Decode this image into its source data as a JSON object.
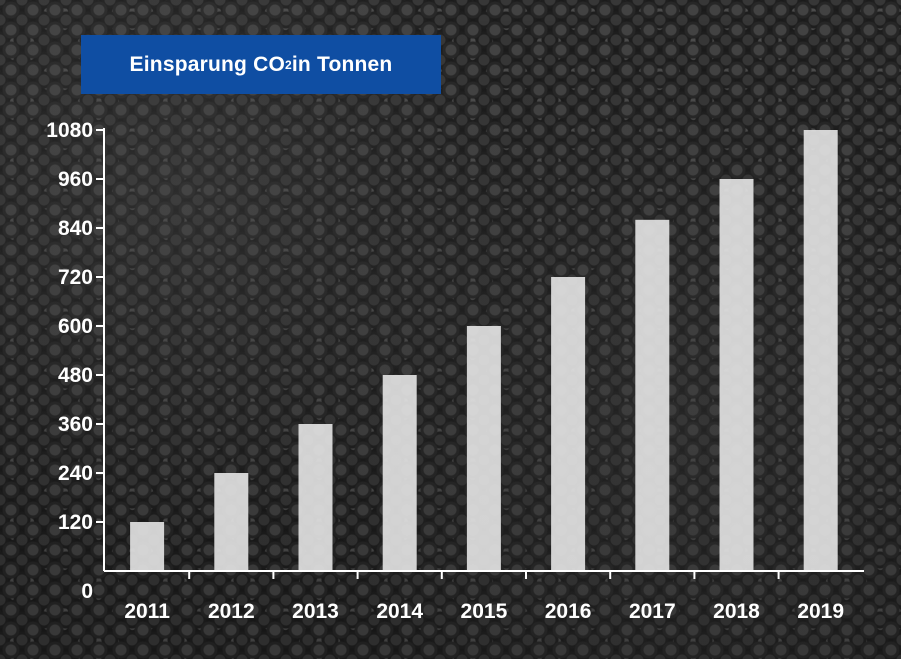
{
  "title": {
    "prefix": "Einsparung CO",
    "subscript": "2",
    "suffix": " in Tonnen"
  },
  "chart_data": {
    "type": "bar",
    "title": "Einsparung CO₂ in Tonnen",
    "categories": [
      "2011",
      "2012",
      "2013",
      "2014",
      "2015",
      "2016",
      "2017",
      "2018",
      "2019"
    ],
    "values": [
      120,
      240,
      360,
      480,
      600,
      720,
      860,
      960,
      1080
    ],
    "ylim": [
      0,
      1080
    ],
    "yticks": [
      0,
      120,
      240,
      360,
      480,
      600,
      720,
      840,
      960,
      1080
    ],
    "grid": false,
    "bar_color": "#e6e6e6",
    "axis_color": "#ffffff"
  }
}
